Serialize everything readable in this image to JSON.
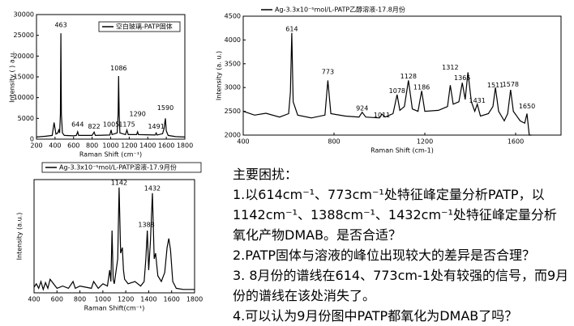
{
  "chart_data": [
    {
      "type": "line",
      "legend": "top-right",
      "xlabel": "Raman Shift (cm⁻¹)",
      "ylabel": "Intensity ( ) a.u.",
      "xlim": [
        200,
        1800
      ],
      "xticks": [
        200,
        400,
        600,
        800,
        1000,
        1200,
        1400,
        1600,
        1800
      ],
      "ylim": [
        0,
        30000
      ],
      "yticks": [
        0,
        5000,
        10000,
        15000,
        20000,
        25000,
        30000
      ],
      "x": [
        200,
        300,
        370,
        390,
        410,
        430,
        440,
        450,
        458,
        463,
        468,
        480,
        500,
        600,
        630,
        644,
        655,
        800,
        822,
        835,
        990,
        1005,
        1015,
        1070,
        1080,
        1086,
        1092,
        1100,
        1160,
        1175,
        1190,
        1280,
        1290,
        1300,
        1480,
        1491,
        1500,
        1560,
        1575,
        1590,
        1600,
        1620,
        1700,
        1800
      ],
      "series": [
        {
          "name": "空白玻璃-PATP固体",
          "color": "#000000",
          "values": [
            500,
            700,
            900,
            4000,
            1200,
            1500,
            2200,
            1500,
            6000,
            25500,
            6000,
            1500,
            900,
            800,
            900,
            1800,
            900,
            900,
            1700,
            900,
            1000,
            2200,
            1100,
            1500,
            6000,
            15200,
            6000,
            1500,
            1100,
            2200,
            1100,
            1100,
            1800,
            1100,
            1000,
            1500,
            1000,
            1300,
            2500,
            5000,
            2000,
            900,
            600,
            500
          ]
        }
      ],
      "annotations": [
        {
          "label": "463",
          "x": 463,
          "y": 27500
        },
        {
          "label": "644",
          "x": 644,
          "y": 3500
        },
        {
          "label": "822",
          "x": 822,
          "y": 3000
        },
        {
          "label": "1005",
          "x": 1005,
          "y": 3500
        },
        {
          "label": "1086",
          "x": 1086,
          "y": 17000
        },
        {
          "label": "1175",
          "x": 1175,
          "y": 3500
        },
        {
          "label": "1290",
          "x": 1290,
          "y": 6000
        },
        {
          "label": "1491",
          "x": 1491,
          "y": 3000
        },
        {
          "label": "1590",
          "x": 1590,
          "y": 7500
        }
      ]
    },
    {
      "type": "line",
      "legend": "top",
      "xlabel": "Raman Shift (cm-1)",
      "ylabel": "Intensity (a. u.)",
      "xlim": [
        400,
        1800
      ],
      "xticks": [
        400,
        800,
        1200,
        1600
      ],
      "ylim": [
        2000,
        4500
      ],
      "yticks": [
        2000,
        2500,
        3000,
        3500,
        4000,
        4500
      ],
      "x": [
        400,
        450,
        500,
        560,
        600,
        608,
        614,
        620,
        640,
        700,
        760,
        773,
        786,
        850,
        910,
        924,
        940,
        1000,
        1011,
        1025,
        1060,
        1078,
        1090,
        1110,
        1128,
        1145,
        1170,
        1186,
        1200,
        1260,
        1300,
        1312,
        1325,
        1350,
        1365,
        1378,
        1390,
        1405,
        1420,
        1431,
        1445,
        1480,
        1500,
        1511,
        1525,
        1550,
        1565,
        1578,
        1590,
        1620,
        1640,
        1650,
        1660,
        1670
      ],
      "series": [
        {
          "name": "Ag-3.3x10⁻⁵mol/L-PATP乙醇溶液-17.8月份",
          "color": "#000000",
          "values": [
            2500,
            2420,
            2460,
            2380,
            2450,
            2900,
            4150,
            2700,
            2420,
            2360,
            2420,
            3150,
            2450,
            2400,
            2380,
            2480,
            2380,
            2360,
            2440,
            2380,
            2450,
            2850,
            2520,
            2600,
            3150,
            2550,
            2500,
            2930,
            2500,
            2520,
            2600,
            3050,
            2650,
            2700,
            3100,
            2750,
            3320,
            2700,
            2500,
            2650,
            2400,
            2450,
            2600,
            3000,
            2500,
            2300,
            2450,
            2950,
            2500,
            2300,
            2250,
            2450,
            2000,
            2000
          ]
        }
      ],
      "annotations": [
        {
          "label": "614",
          "x": 614,
          "y": 4230
        },
        {
          "label": "773",
          "x": 773,
          "y": 3330
        },
        {
          "label": "924",
          "x": 924,
          "y": 2560
        },
        {
          "label": "1011",
          "x": 1011,
          "y": 2420
        },
        {
          "label": "1078",
          "x": 1078,
          "y": 2930
        },
        {
          "label": "1128",
          "x": 1128,
          "y": 3230
        },
        {
          "label": "1186",
          "x": 1186,
          "y": 3000
        },
        {
          "label": "1312",
          "x": 1312,
          "y": 3420
        },
        {
          "label": "1365",
          "x": 1365,
          "y": 3200
        },
        {
          "label": "1431",
          "x": 1431,
          "y": 2720
        },
        {
          "label": "1511",
          "x": 1511,
          "y": 3050
        },
        {
          "label": "1578",
          "x": 1578,
          "y": 3060
        },
        {
          "label": "1650",
          "x": 1650,
          "y": 2600
        }
      ]
    },
    {
      "type": "line",
      "legend": "top",
      "xlabel": "Raman Shift(cm⁻¹)",
      "ylabel": "Intensity (a.u.)",
      "xlim": [
        400,
        1800
      ],
      "xticks": [
        400,
        600,
        800,
        1000,
        1200,
        1400,
        1600,
        1800
      ],
      "ylim": [
        0,
        100
      ],
      "x": [
        400,
        420,
        440,
        460,
        480,
        500,
        520,
        540,
        600,
        650,
        700,
        740,
        760,
        800,
        850,
        900,
        920,
        960,
        1000,
        1040,
        1060,
        1070,
        1080,
        1090,
        1100,
        1130,
        1142,
        1155,
        1170,
        1180,
        1190,
        1220,
        1280,
        1330,
        1360,
        1375,
        1388,
        1400,
        1415,
        1432,
        1448,
        1460,
        1470,
        1480,
        1510,
        1540,
        1560,
        1575,
        1590,
        1610,
        1640,
        1700,
        1800
      ],
      "series": [
        {
          "name": "Ag-3.3x10⁻⁵mol/L-PATP溶液-17.9月份",
          "color": "#000000",
          "values": [
            5,
            8,
            4,
            10,
            3,
            9,
            4,
            12,
            4,
            6,
            4,
            10,
            4,
            6,
            5,
            4,
            10,
            4,
            8,
            6,
            20,
            10,
            55,
            12,
            8,
            30,
            93,
            35,
            40,
            20,
            12,
            8,
            10,
            6,
            10,
            30,
            55,
            20,
            45,
            88,
            30,
            35,
            25,
            15,
            10,
            18,
            40,
            48,
            38,
            10,
            4,
            3,
            3
          ]
        }
      ],
      "annotations": [
        {
          "label": "1142",
          "x": 1142,
          "y": 97
        },
        {
          "label": "1388",
          "x": 1380,
          "y": 60
        },
        {
          "label": "1432",
          "x": 1432,
          "y": 92
        }
      ]
    }
  ],
  "notes": {
    "heading": "主要困扰：",
    "items": [
      "1.以614cm⁻¹、773cm⁻¹处特征峰定量分析PATP，以1142cm⁻¹、1388cm⁻¹、1432cm⁻¹处特征峰定量分析氧化产物DMAB。是否合适？",
      "2.PATP固体与溶液的峰位出现较大的差异是否合理？",
      "3. 8月份的谱线在614、773cm-1处有较强的信号，而9月份的谱线在该处消失了。",
      "4.可以认为9月份图中PATP都氧化为DMAB了吗？"
    ]
  }
}
